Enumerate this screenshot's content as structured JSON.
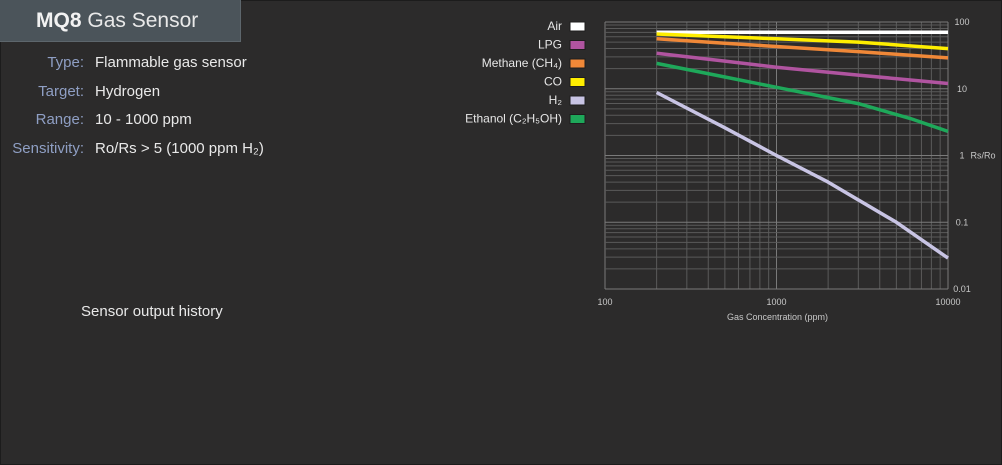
{
  "header": {
    "model": "MQ8",
    "title": "Gas Sensor"
  },
  "specs": [
    {
      "label": "Type:",
      "value": "Flammable gas sensor"
    },
    {
      "label": "Target:",
      "value": "Hydrogen"
    },
    {
      "label": "Range:",
      "value": "10 - 1000 ppm"
    },
    {
      "label": "Sensitivity:",
      "value": "Ro/Rs > 5 (1000 ppm H₂)"
    }
  ],
  "history": {
    "label": "Sensor output history"
  },
  "chart_data": {
    "type": "line",
    "xscale": "log",
    "yscale": "log",
    "xlim": [
      100,
      10000
    ],
    "ylim": [
      0.01,
      100
    ],
    "xlabel": "Gas Concentration (ppm)",
    "ylabel": "Rs/Ro",
    "xticks": [
      "100",
      "1000",
      "10000"
    ],
    "yticks": [
      "100",
      "10",
      "1",
      "0.1",
      "0.01"
    ],
    "grid": true,
    "legend_position": "top-left",
    "series": [
      {
        "name": "Air",
        "color": "#ffffff",
        "x": [
          200,
          10000
        ],
        "y": [
          70,
          70
        ]
      },
      {
        "name": "LPG",
        "color": "#b054a0",
        "x": [
          200,
          500,
          1000,
          3000,
          10000
        ],
        "y": [
          34,
          26,
          21,
          16,
          12
        ]
      },
      {
        "name": "Methane (CH₄)",
        "color": "#f08838",
        "x": [
          200,
          500,
          1000,
          3000,
          10000
        ],
        "y": [
          56,
          48,
          43,
          36,
          29
        ]
      },
      {
        "name": "CO",
        "color": "#ffee00",
        "x": [
          200,
          500,
          1000,
          3000,
          10000
        ],
        "y": [
          66,
          60,
          56,
          50,
          40
        ]
      },
      {
        "name": "H₂",
        "color": "#c8c4e4",
        "x": [
          200,
          500,
          1000,
          2000,
          5000,
          10000
        ],
        "y": [
          8.8,
          2.6,
          1.0,
          0.4,
          0.1,
          0.029
        ]
      },
      {
        "name": "Ethanol (C₂H₅OH)",
        "color": "#1ea85a",
        "x": [
          200,
          500,
          1000,
          3000,
          6000,
          10000
        ],
        "y": [
          24,
          15,
          10.5,
          6,
          3.6,
          2.3
        ]
      }
    ]
  }
}
